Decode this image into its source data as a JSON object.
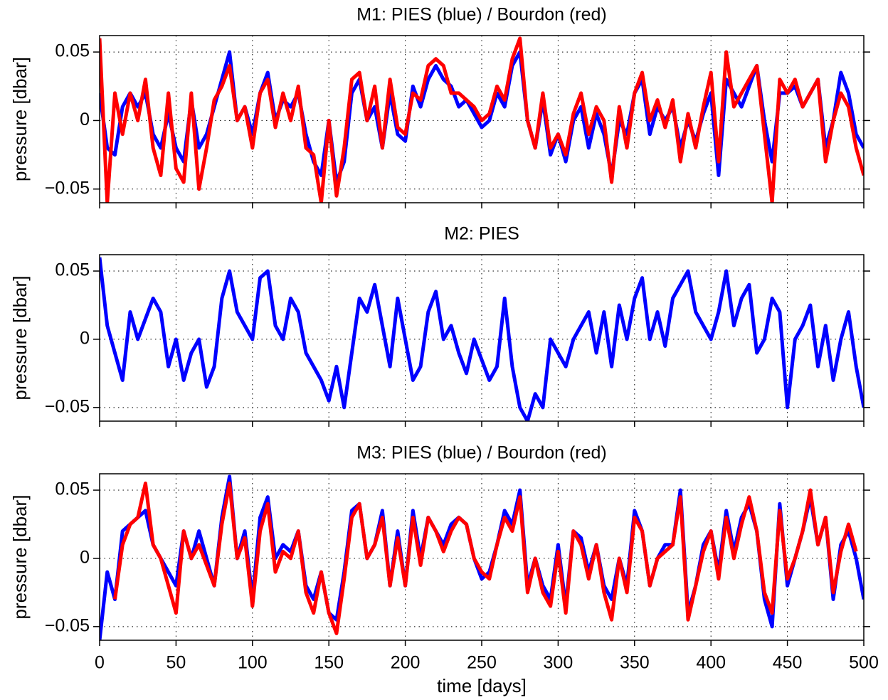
{
  "chart_data": [
    {
      "type": "line",
      "title": "M1:  PIES (blue) / Bourdon (red)",
      "ylabel": "pressure [dbar]",
      "x": [
        0,
        5,
        10,
        15,
        20,
        25,
        30,
        35,
        40,
        45,
        50,
        55,
        60,
        65,
        70,
        75,
        80,
        85,
        90,
        95,
        100,
        105,
        110,
        115,
        120,
        125,
        130,
        135,
        140,
        145,
        150,
        155,
        160,
        165,
        170,
        175,
        180,
        185,
        190,
        195,
        200,
        205,
        210,
        215,
        220,
        225,
        230,
        235,
        240,
        245,
        250,
        255,
        260,
        265,
        270,
        275,
        280,
        285,
        290,
        295,
        300,
        305,
        310,
        315,
        320,
        325,
        330,
        335,
        340,
        345,
        350,
        355,
        360,
        365,
        370,
        375,
        380,
        385,
        390,
        395,
        400,
        405,
        410,
        415,
        420,
        425,
        430,
        435,
        440,
        445,
        450,
        455,
        460,
        465,
        470,
        475,
        480,
        485,
        490,
        495,
        500
      ],
      "xlim": [
        0,
        500
      ],
      "xticks": [
        0,
        50,
        100,
        150,
        200,
        250,
        300,
        350,
        400,
        450,
        500
      ],
      "ylim": [
        -0.06,
        0.062
      ],
      "yticks": [
        {
          "value": -0.05,
          "label": "−0.05"
        },
        0,
        0.05
      ],
      "grid": true,
      "series": [
        {
          "name": "PIES",
          "color": "#0000ff",
          "values": [
            0.02,
            -0.02,
            -0.025,
            0.01,
            0.02,
            0.01,
            0.02,
            -0.01,
            -0.02,
            0.005,
            -0.02,
            -0.03,
            0.015,
            -0.02,
            -0.01,
            0.01,
            0.03,
            0.05,
            0.0,
            0.01,
            -0.01,
            0.02,
            0.035,
            0.0,
            0.015,
            0.01,
            0.02,
            -0.01,
            -0.03,
            -0.04,
            0.0,
            -0.045,
            -0.03,
            0.02,
            0.03,
            0.0,
            0.01,
            -0.02,
            0.02,
            -0.01,
            -0.015,
            0.025,
            0.01,
            0.03,
            0.04,
            0.03,
            0.025,
            0.01,
            0.015,
            0.005,
            -0.005,
            0.0,
            0.02,
            0.01,
            0.04,
            0.05,
            0.0,
            -0.02,
            0.015,
            -0.025,
            -0.01,
            -0.03,
            0.0,
            0.01,
            -0.02,
            0.005,
            -0.01,
            -0.04,
            0.0,
            -0.01,
            0.02,
            0.03,
            -0.01,
            0.01,
            0.0,
            0.01,
            -0.02,
            0.0,
            -0.015,
            0.005,
            0.02,
            -0.04,
            0.03,
            0.02,
            0.01,
            0.025,
            0.04,
            0.0,
            -0.03,
            0.02,
            0.02,
            0.025,
            0.01,
            0.02,
            0.03,
            -0.02,
            0.0,
            0.035,
            0.02,
            -0.01,
            -0.02
          ]
        },
        {
          "name": "Bourdon",
          "color": "#ff0000",
          "values": [
            0.06,
            -0.06,
            0.02,
            -0.01,
            0.02,
            0.0,
            0.03,
            -0.02,
            -0.04,
            0.02,
            -0.035,
            -0.045,
            0.02,
            -0.05,
            -0.02,
            0.015,
            0.025,
            0.04,
            0.0,
            0.01,
            -0.02,
            0.02,
            0.03,
            -0.005,
            0.02,
            0.0,
            0.025,
            -0.02,
            -0.025,
            -0.06,
            0.0,
            -0.055,
            -0.02,
            0.03,
            0.035,
            0.0,
            0.025,
            -0.02,
            0.03,
            -0.005,
            -0.01,
            0.02,
            0.015,
            0.04,
            0.045,
            0.04,
            0.02,
            0.02,
            0.015,
            0.01,
            0.0,
            0.005,
            0.025,
            0.015,
            0.045,
            0.06,
            0.0,
            -0.02,
            0.02,
            -0.02,
            -0.01,
            -0.025,
            0.005,
            0.02,
            -0.01,
            0.01,
            0.0,
            -0.045,
            0.01,
            -0.02,
            0.02,
            0.035,
            0.0,
            0.015,
            -0.005,
            0.015,
            -0.03,
            0.005,
            -0.02,
            0.01,
            0.035,
            -0.03,
            0.05,
            0.01,
            0.02,
            0.03,
            0.04,
            -0.01,
            -0.06,
            0.03,
            0.02,
            0.03,
            0.01,
            0.02,
            0.03,
            -0.03,
            0.0,
            0.02,
            0.01,
            -0.02,
            -0.04
          ]
        }
      ]
    },
    {
      "type": "line",
      "title": "M2:  PIES",
      "ylabel": "pressure [dbar]",
      "x": [
        0,
        5,
        10,
        15,
        20,
        25,
        30,
        35,
        40,
        45,
        50,
        55,
        60,
        65,
        70,
        75,
        80,
        85,
        90,
        95,
        100,
        105,
        110,
        115,
        120,
        125,
        130,
        135,
        140,
        145,
        150,
        155,
        160,
        165,
        170,
        175,
        180,
        185,
        190,
        195,
        200,
        205,
        210,
        215,
        220,
        225,
        230,
        235,
        240,
        245,
        250,
        255,
        260,
        265,
        270,
        275,
        280,
        285,
        290,
        295,
        300,
        305,
        310,
        315,
        320,
        325,
        330,
        335,
        340,
        345,
        350,
        355,
        360,
        365,
        370,
        375,
        380,
        385,
        390,
        395,
        400,
        405,
        410,
        415,
        420,
        425,
        430,
        435,
        440,
        445,
        450,
        455,
        460,
        465,
        470,
        475,
        480,
        485,
        490,
        495,
        500
      ],
      "xlim": [
        0,
        500
      ],
      "xticks": [
        0,
        50,
        100,
        150,
        200,
        250,
        300,
        350,
        400,
        450,
        500
      ],
      "ylim": [
        -0.06,
        0.062
      ],
      "yticks": [
        {
          "value": -0.05,
          "label": "−0.05"
        },
        0,
        0.05
      ],
      "grid": true,
      "series": [
        {
          "name": "PIES",
          "color": "#0000ff",
          "values": [
            0.06,
            0.01,
            -0.01,
            -0.03,
            0.02,
            0.0,
            0.015,
            0.03,
            0.02,
            -0.02,
            0.0,
            -0.03,
            -0.01,
            0.0,
            -0.035,
            -0.02,
            0.03,
            0.05,
            0.02,
            0.01,
            0.0,
            0.045,
            0.05,
            0.01,
            0.0,
            0.03,
            0.02,
            -0.01,
            -0.02,
            -0.03,
            -0.045,
            -0.02,
            -0.05,
            -0.01,
            0.03,
            0.02,
            0.04,
            0.01,
            -0.02,
            0.03,
            0.0,
            -0.03,
            -0.02,
            0.02,
            0.035,
            0.0,
            0.01,
            -0.01,
            -0.025,
            0.0,
            -0.015,
            -0.03,
            -0.02,
            0.03,
            -0.02,
            -0.05,
            -0.06,
            -0.04,
            -0.05,
            0.0,
            -0.01,
            -0.02,
            0.0,
            0.01,
            0.02,
            -0.01,
            0.02,
            -0.02,
            0.025,
            0.0,
            0.03,
            0.045,
            0.0,
            0.02,
            -0.005,
            0.03,
            0.04,
            0.05,
            0.02,
            0.01,
            0.0,
            0.02,
            0.05,
            0.01,
            0.03,
            0.04,
            -0.01,
            0.0,
            0.03,
            0.02,
            -0.05,
            0.0,
            0.01,
            0.025,
            -0.02,
            0.01,
            -0.03,
            0.0,
            0.02,
            -0.02,
            -0.05
          ]
        }
      ]
    },
    {
      "type": "line",
      "title": "M3:  PIES (blue) / Bourdon (red)",
      "ylabel": "pressure [dbar]",
      "xlabel": "time [days]",
      "x": [
        0,
        5,
        10,
        15,
        20,
        25,
        30,
        35,
        40,
        45,
        50,
        55,
        60,
        65,
        70,
        75,
        80,
        85,
        90,
        95,
        100,
        105,
        110,
        115,
        120,
        125,
        130,
        135,
        140,
        145,
        150,
        155,
        160,
        165,
        170,
        175,
        180,
        185,
        190,
        195,
        200,
        205,
        210,
        215,
        220,
        225,
        230,
        235,
        240,
        245,
        250,
        255,
        260,
        265,
        270,
        275,
        280,
        285,
        290,
        295,
        300,
        305,
        310,
        315,
        320,
        325,
        330,
        335,
        340,
        345,
        350,
        355,
        360,
        365,
        370,
        375,
        380,
        385,
        390,
        395,
        400,
        405,
        410,
        415,
        420,
        425,
        430,
        435,
        440,
        445,
        450,
        455,
        460,
        465,
        470,
        475,
        480,
        485,
        490,
        495,
        500
      ],
      "xlim": [
        0,
        500
      ],
      "xticks": [
        0,
        50,
        100,
        150,
        200,
        250,
        300,
        350,
        400,
        450,
        500
      ],
      "ylim": [
        -0.06,
        0.062
      ],
      "yticks": [
        {
          "value": -0.05,
          "label": "−0.05"
        },
        0,
        0.05
      ],
      "grid": true,
      "series": [
        {
          "name": "PIES",
          "color": "#0000ff",
          "values": [
            -0.06,
            -0.01,
            -0.03,
            0.02,
            0.025,
            0.03,
            0.035,
            0.01,
            0.0,
            -0.01,
            -0.02,
            0.02,
            0.0,
            0.02,
            0.0,
            -0.02,
            0.03,
            0.06,
            0.0,
            0.02,
            -0.03,
            0.03,
            0.045,
            0.0,
            0.01,
            0.005,
            0.02,
            -0.02,
            -0.03,
            -0.01,
            -0.04,
            -0.045,
            -0.01,
            0.035,
            0.04,
            0.0,
            0.01,
            0.035,
            -0.02,
            0.02,
            -0.02,
            0.035,
            0.0,
            0.03,
            0.02,
            0.01,
            0.025,
            0.03,
            0.025,
            0.0,
            -0.015,
            -0.01,
            0.01,
            0.035,
            0.025,
            0.05,
            -0.02,
            0.0,
            -0.02,
            -0.03,
            0.01,
            -0.035,
            0.02,
            0.015,
            -0.01,
            0.01,
            -0.02,
            -0.03,
            0.0,
            -0.02,
            0.035,
            0.02,
            -0.02,
            0.0,
            0.01,
            0.01,
            0.05,
            -0.04,
            -0.02,
            0.01,
            0.02,
            -0.01,
            0.035,
            0.005,
            0.03,
            0.04,
            0.02,
            -0.03,
            -0.05,
            0.04,
            -0.02,
            0.0,
            0.02,
            0.045,
            0.01,
            0.03,
            -0.03,
            0.01,
            0.02,
            0.0,
            -0.03
          ]
        },
        {
          "name": "Bourdon",
          "color": "#ff0000",
          "values": [
            null,
            null,
            -0.03,
            0.01,
            0.025,
            0.03,
            0.055,
            0.01,
            0.0,
            -0.02,
            -0.04,
            0.02,
            0.0,
            0.01,
            -0.005,
            -0.02,
            0.025,
            0.055,
            0.0,
            0.015,
            -0.035,
            0.02,
            0.04,
            -0.01,
            0.005,
            0.0,
            0.02,
            -0.025,
            -0.04,
            -0.01,
            -0.04,
            -0.055,
            -0.015,
            0.03,
            0.04,
            0.0,
            0.01,
            0.03,
            -0.02,
            0.015,
            -0.02,
            0.03,
            -0.005,
            0.03,
            0.02,
            0.005,
            0.02,
            0.03,
            0.025,
            0.0,
            -0.01,
            -0.015,
            0.01,
            0.03,
            0.02,
            0.045,
            -0.025,
            0.0,
            -0.025,
            -0.035,
            0.005,
            -0.04,
            0.02,
            0.01,
            -0.015,
            0.01,
            -0.025,
            -0.045,
            0.0,
            -0.025,
            0.03,
            0.02,
            -0.02,
            0.0,
            0.005,
            0.01,
            0.045,
            -0.045,
            -0.02,
            0.005,
            0.02,
            -0.015,
            0.03,
            0.0,
            0.025,
            0.045,
            0.02,
            -0.025,
            -0.04,
            0.035,
            -0.015,
            0.0,
            0.02,
            0.05,
            0.01,
            0.03,
            -0.025,
            0.005,
            0.025,
            0.005,
            null
          ]
        }
      ]
    }
  ]
}
